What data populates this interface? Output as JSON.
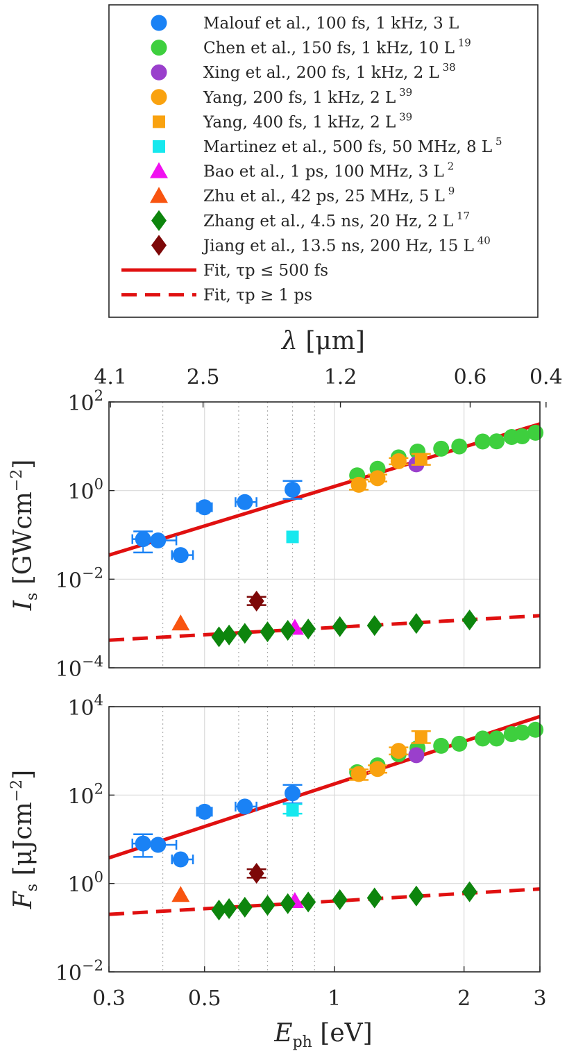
{
  "chart_data": [
    {
      "type": "scatter",
      "title": "",
      "ylabel": "I_s [GWcm^-2]",
      "ylabel_main": "I",
      "ylabel_sub": "s",
      "ylabel_unit": "[GWcm",
      "ylabel_exp": "−2",
      "yscale": "log",
      "ylim": [
        0.0001,
        100
      ],
      "xscale": "log",
      "xlim": [
        0.3,
        3
      ],
      "top_axis": {
        "label": "λ [μm]",
        "symbol": "λ",
        "unit": "[μm]",
        "ticks": [
          4.1,
          2.5,
          1.2,
          0.6,
          0.4
        ],
        "tick_labels": [
          "4.1",
          "2.5",
          "1.2",
          "0.6",
          "0.4"
        ]
      },
      "yticks": [
        {
          "base": "10",
          "exp": "2"
        },
        {
          "base": "10",
          "exp": "0"
        },
        {
          "base": "10",
          "exp": "-2"
        },
        {
          "base": "10",
          "exp": "-4"
        }
      ],
      "series": [
        {
          "name": "Malouf et al.",
          "points": [
            {
              "x": 0.36,
              "y": 0.08,
              "err": [
                0.04,
                0.12
              ],
              "xerr": [
                0.34,
                0.39
              ]
            },
            {
              "x": 0.39,
              "y": 0.075,
              "xerr": [
                0.36,
                0.43
              ]
            },
            {
              "x": 0.44,
              "y": 0.035,
              "xerr": [
                0.42,
                0.47
              ]
            },
            {
              "x": 0.5,
              "y": 0.42,
              "xerr": [
                0.48,
                0.52
              ]
            },
            {
              "x": 0.62,
              "y": 0.55,
              "xerr": [
                0.59,
                0.66
              ]
            },
            {
              "x": 0.8,
              "y": 1.05,
              "err": [
                0.65,
                1.65
              ]
            }
          ]
        },
        {
          "name": "Chen et al.",
          "points": [
            {
              "x": 1.13,
              "y": 2.2
            },
            {
              "x": 1.26,
              "y": 3.1
            },
            {
              "x": 1.41,
              "y": 5.6
            },
            {
              "x": 1.56,
              "y": 7.6
            },
            {
              "x": 1.77,
              "y": 8.8
            },
            {
              "x": 1.95,
              "y": 9.9
            },
            {
              "x": 2.21,
              "y": 12.8
            },
            {
              "x": 2.38,
              "y": 12.9
            },
            {
              "x": 2.58,
              "y": 16.2
            },
            {
              "x": 2.73,
              "y": 16.8
            },
            {
              "x": 2.93,
              "y": 20.2
            }
          ]
        },
        {
          "name": "Xing et al.",
          "points": [
            {
              "x": 1.55,
              "y": 3.9
            }
          ]
        },
        {
          "name": "Yang 200 fs",
          "points": [
            {
              "x": 1.14,
              "y": 1.35,
              "err": [
                1.05,
                1.75
              ]
            },
            {
              "x": 1.26,
              "y": 1.9,
              "err": [
                1.6,
                2.3
              ]
            },
            {
              "x": 1.41,
              "y": 4.6,
              "err": [
                3.9,
                5.4
              ]
            }
          ]
        },
        {
          "name": "Yang 400 fs",
          "points": [
            {
              "x": 1.59,
              "y": 5.1,
              "err": [
                3.8,
                6.7
              ]
            }
          ]
        },
        {
          "name": "Martinez et al.",
          "points": [
            {
              "x": 0.8,
              "y": 0.09
            }
          ]
        },
        {
          "name": "Bao et al.",
          "points": [
            {
              "x": 0.81,
              "y": 0.0008
            }
          ]
        },
        {
          "name": "Zhu et al.",
          "points": [
            {
              "x": 0.44,
              "y": 0.001
            }
          ]
        },
        {
          "name": "Zhang et al.",
          "points": [
            {
              "x": 0.54,
              "y": 0.0005
            },
            {
              "x": 0.57,
              "y": 0.00055
            },
            {
              "x": 0.62,
              "y": 0.0006
            },
            {
              "x": 0.7,
              "y": 0.00065
            },
            {
              "x": 0.78,
              "y": 0.0007
            },
            {
              "x": 0.87,
              "y": 0.00075
            },
            {
              "x": 1.03,
              "y": 0.00085
            },
            {
              "x": 1.24,
              "y": 0.0009
            },
            {
              "x": 1.55,
              "y": 0.001
            },
            {
              "x": 2.06,
              "y": 0.0012
            }
          ]
        },
        {
          "name": "Jiang et al.",
          "points": [
            {
              "x": 0.66,
              "y": 0.0032,
              "err": [
                0.0026,
                0.004
              ]
            }
          ]
        }
      ],
      "fits": [
        {
          "name": "Fit, τp ≤ 500 fs",
          "x": [
            0.3,
            3
          ],
          "y": [
            0.035,
            32
          ]
        },
        {
          "name": "Fit, τp ≥ 1 ps",
          "x": [
            0.3,
            3
          ],
          "y": [
            0.00042,
            0.0015
          ]
        }
      ]
    },
    {
      "type": "scatter",
      "title": "",
      "ylabel": "F_s [μJcm^-2]",
      "ylabel_main": "F",
      "ylabel_sub": "s",
      "ylabel_unit": "[μJcm",
      "ylabel_exp": "−2",
      "xlabel": "E_ph [eV]",
      "xlabel_main": "E",
      "xlabel_sub": "ph",
      "xlabel_unit": "[eV]",
      "yscale": "log",
      "ylim": [
        0.01,
        10000
      ],
      "xscale": "log",
      "xlim": [
        0.3,
        3
      ],
      "xticks": [
        0.3,
        0.5,
        1,
        2,
        3
      ],
      "xtick_labels": [
        "0.3",
        "0.5",
        "1",
        "2",
        "3"
      ],
      "yticks": [
        {
          "base": "10",
          "exp": "4"
        },
        {
          "base": "10",
          "exp": "2"
        },
        {
          "base": "10",
          "exp": "0"
        },
        {
          "base": "10",
          "exp": "-2"
        }
      ],
      "series": [
        {
          "name": "Malouf et al.",
          "points": [
            {
              "x": 0.36,
              "y": 8,
              "err": [
                4,
                13
              ],
              "xerr": [
                0.34,
                0.39
              ]
            },
            {
              "x": 0.39,
              "y": 7.5,
              "xerr": [
                0.36,
                0.43
              ]
            },
            {
              "x": 0.44,
              "y": 3.5,
              "xerr": [
                0.42,
                0.47
              ]
            },
            {
              "x": 0.5,
              "y": 42,
              "xerr": [
                0.48,
                0.52
              ]
            },
            {
              "x": 0.62,
              "y": 55,
              "xerr": [
                0.59,
                0.66
              ]
            },
            {
              "x": 0.8,
              "y": 110,
              "err": [
                65,
                170
              ]
            }
          ]
        },
        {
          "name": "Chen et al.",
          "points": [
            {
              "x": 1.13,
              "y": 330
            },
            {
              "x": 1.26,
              "y": 470
            },
            {
              "x": 1.41,
              "y": 840
            },
            {
              "x": 1.56,
              "y": 1150
            },
            {
              "x": 1.77,
              "y": 1300
            },
            {
              "x": 1.95,
              "y": 1450
            },
            {
              "x": 2.21,
              "y": 1900
            },
            {
              "x": 2.38,
              "y": 1900
            },
            {
              "x": 2.58,
              "y": 2400
            },
            {
              "x": 2.73,
              "y": 2600
            },
            {
              "x": 2.93,
              "y": 3000
            }
          ]
        },
        {
          "name": "Xing et al.",
          "points": [
            {
              "x": 1.55,
              "y": 800
            }
          ]
        },
        {
          "name": "Yang 200 fs",
          "points": [
            {
              "x": 1.14,
              "y": 300,
              "err": [
                220,
                380
              ]
            },
            {
              "x": 1.26,
              "y": 390,
              "err": [
                320,
                470
              ]
            },
            {
              "x": 1.41,
              "y": 1000,
              "err": [
                830,
                1200
              ]
            }
          ]
        },
        {
          "name": "Yang 400 fs",
          "points": [
            {
              "x": 1.59,
              "y": 2100,
              "err": [
                1500,
                2800
              ]
            }
          ]
        },
        {
          "name": "Martinez et al.",
          "points": [
            {
              "x": 0.8,
              "y": 45,
              "err": [
                38,
                62
              ]
            }
          ]
        },
        {
          "name": "Bao et al.",
          "points": [
            {
              "x": 0.81,
              "y": 0.4
            }
          ]
        },
        {
          "name": "Zhu et al.",
          "points": [
            {
              "x": 0.44,
              "y": 0.55
            }
          ]
        },
        {
          "name": "Zhang et al.",
          "points": [
            {
              "x": 0.54,
              "y": 0.25
            },
            {
              "x": 0.57,
              "y": 0.27
            },
            {
              "x": 0.62,
              "y": 0.29
            },
            {
              "x": 0.7,
              "y": 0.32
            },
            {
              "x": 0.78,
              "y": 0.35
            },
            {
              "x": 0.87,
              "y": 0.38
            },
            {
              "x": 1.03,
              "y": 0.43
            },
            {
              "x": 1.24,
              "y": 0.47
            },
            {
              "x": 1.55,
              "y": 0.52
            },
            {
              "x": 2.06,
              "y": 0.65
            }
          ]
        },
        {
          "name": "Jiang et al.",
          "points": [
            {
              "x": 0.66,
              "y": 1.7,
              "err": [
                1.35,
                2.1
              ]
            }
          ]
        }
      ],
      "fits": [
        {
          "name": "Fit, τp ≤ 500 fs",
          "x": [
            0.3,
            3
          ],
          "y": [
            3.8,
            6000
          ]
        },
        {
          "name": "Fit, τp ≥ 1 ps",
          "x": [
            0.3,
            3
          ],
          "y": [
            0.2,
            0.75
          ]
        }
      ]
    }
  ],
  "legend": {
    "placement": "top",
    "entries": [
      {
        "series": "Malouf et al.",
        "marker": "circle",
        "color": "#1a82f5",
        "text": "Malouf et al., 100 fs, 1 kHz, 3 L",
        "ref": ""
      },
      {
        "series": "Chen et al.",
        "marker": "circle",
        "color": "#3ecf3e",
        "text": "Chen et al., 150 fs, 1 kHz, 10 L",
        "ref": "19"
      },
      {
        "series": "Xing et al.",
        "marker": "circle",
        "color": "#9a3fcc",
        "text": "Xing et al., 200 fs, 1 kHz, 2 L",
        "ref": "38"
      },
      {
        "series": "Yang 200 fs",
        "marker": "circle",
        "color": "#f9a20f",
        "text": "Yang, 200 fs, 1 kHz, 2 L",
        "ref": "39"
      },
      {
        "series": "Yang 400 fs",
        "marker": "square",
        "color": "#f9a20f",
        "text": "Yang, 400 fs, 1 kHz, 2 L",
        "ref": "39"
      },
      {
        "series": "Martinez et al.",
        "marker": "square",
        "color": "#16e8ee",
        "text": "Martinez et al., 500 fs, 50 MHz, 8 L",
        "ref": "5"
      },
      {
        "series": "Bao et al.",
        "marker": "triangle",
        "color": "#f010f0",
        "text": "Bao et al., 1 ps, 100 MHz, 3 L",
        "ref": "2"
      },
      {
        "series": "Zhu et al.",
        "marker": "triangle",
        "color": "#f85410",
        "text": "Zhu et al., 42 ps, 25 MHz, 5 L",
        "ref": "9"
      },
      {
        "series": "Zhang et al.",
        "marker": "diamond",
        "color": "#0d850d",
        "text": "Zhang et al., 4.5 ns, 20 Hz, 2 L",
        "ref": "17"
      },
      {
        "series": "Jiang et al.",
        "marker": "diamond",
        "color": "#7d0808",
        "text": "Jiang et al., 13.5 ns, 200 Hz, 15 L",
        "ref": "40"
      },
      {
        "series": "fit-fs",
        "marker": "solid-line",
        "color": "#e01010",
        "text": "Fit, τp ≤ 500 fs",
        "ref": ""
      },
      {
        "series": "fit-ps",
        "marker": "dashed-line",
        "color": "#e01010",
        "text": "Fit, τp ≥ 1 ps",
        "ref": ""
      }
    ]
  },
  "colors": {
    "fit_line": "#e01010",
    "axis": "#262626",
    "grid": "#d9d9d9"
  }
}
